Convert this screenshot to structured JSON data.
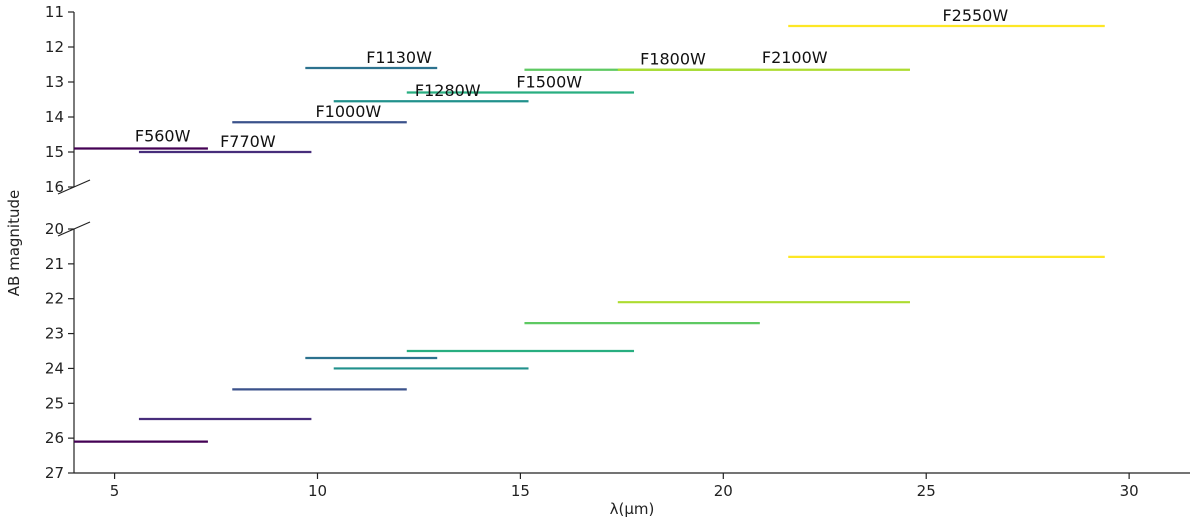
{
  "chart_data": {
    "type": "line",
    "xlabel": "λ(μm)",
    "ylabel": "AB magnitude",
    "xlim": [
      4,
      31.5
    ],
    "x_ticks": [
      5,
      10,
      15,
      20,
      25,
      30
    ],
    "broken_y_axis": true,
    "grid": false,
    "legend": "none",
    "panels": [
      {
        "name": "top",
        "ylim": [
          11,
          16
        ],
        "inverted": true,
        "y_ticks": [
          11,
          12,
          13,
          14,
          15,
          16
        ]
      },
      {
        "name": "bottom",
        "ylim": [
          20,
          27
        ],
        "inverted": true,
        "y_ticks": [
          20,
          21,
          22,
          23,
          24,
          25,
          26,
          27
        ]
      }
    ],
    "series": [
      {
        "name": "F560W",
        "color": "#440154",
        "x_range": [
          4.0,
          7.3
        ],
        "top_mag": 14.9,
        "bottom_mag": 26.1,
        "label_at": [
          5.5,
          14.7
        ]
      },
      {
        "name": "F770W",
        "color": "#472d7b",
        "x_range": [
          5.6,
          9.85
        ],
        "top_mag": 15.0,
        "bottom_mag": 25.45,
        "label_at": [
          7.6,
          14.85
        ]
      },
      {
        "name": "F1000W",
        "color": "#3b528b",
        "x_range": [
          7.9,
          12.2
        ],
        "top_mag": 14.15,
        "bottom_mag": 24.6,
        "label_at": [
          9.95,
          14.0
        ]
      },
      {
        "name": "F1130W",
        "color": "#2c728e",
        "x_range": [
          9.7,
          12.95
        ],
        "top_mag": 12.6,
        "bottom_mag": 23.7,
        "label_at": [
          11.2,
          12.45
        ]
      },
      {
        "name": "F1280W",
        "color": "#21918c",
        "x_range": [
          10.4,
          15.2
        ],
        "top_mag": 13.55,
        "bottom_mag": 24.0,
        "label_at": [
          12.4,
          13.4
        ]
      },
      {
        "name": "F1500W",
        "color": "#28ae80",
        "x_range": [
          12.2,
          17.8
        ],
        "top_mag": 13.3,
        "bottom_mag": 23.5,
        "label_at": [
          14.9,
          13.15
        ]
      },
      {
        "name": "F1800W",
        "color": "#5ec962",
        "x_range": [
          15.1,
          20.9
        ],
        "top_mag": 12.65,
        "bottom_mag": 22.7,
        "label_at": [
          17.95,
          12.5
        ]
      },
      {
        "name": "F2100W",
        "color": "#addc30",
        "x_range": [
          17.4,
          24.6
        ],
        "top_mag": 12.65,
        "bottom_mag": 22.1,
        "label_at": [
          20.95,
          12.45
        ]
      },
      {
        "name": "F2550W",
        "color": "#fde725",
        "x_range": [
          21.6,
          29.4
        ],
        "top_mag": 11.4,
        "bottom_mag": 20.8,
        "label_at": [
          25.4,
          11.25
        ]
      }
    ]
  }
}
